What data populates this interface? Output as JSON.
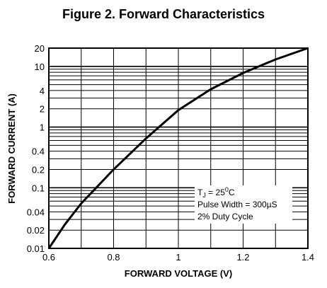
{
  "chart_data": {
    "type": "line",
    "title": "Figure 2. Forward Characteristics",
    "xlabel": "FORWARD VOLTAGE (V)",
    "ylabel": "FORWARD CURRENT (A)",
    "xlim": [
      0.6,
      1.4
    ],
    "ylim": [
      0.01,
      20
    ],
    "yscale": "log",
    "grid": true,
    "x_ticks": [
      0.6,
      0.7,
      0.8,
      0.9,
      1.0,
      1.1,
      1.2,
      1.3,
      1.4
    ],
    "x_tick_labels": [
      "0.6",
      "0.8",
      "1",
      "1.2",
      "1.4"
    ],
    "x_tick_label_values": [
      0.6,
      0.8,
      1.0,
      1.2,
      1.4
    ],
    "y_tick_labels": [
      "20",
      "10",
      "4",
      "2",
      "1",
      "0.4",
      "0.2",
      "0.1",
      "0.04",
      "0.02",
      "0.01"
    ],
    "y_tick_label_values": [
      20,
      10,
      4,
      2,
      1,
      0.4,
      0.2,
      0.1,
      0.04,
      0.02,
      0.01
    ],
    "series": [
      {
        "x": [
          0.6,
          0.65,
          0.7,
          0.8,
          0.9,
          1.0,
          1.1,
          1.2,
          1.3,
          1.4
        ],
        "y": [
          0.01,
          0.025,
          0.055,
          0.2,
          0.65,
          1.9,
          4.2,
          7.8,
          13,
          20
        ]
      }
    ],
    "annotation": {
      "tj_prefix": "T",
      "tj_sub": "J",
      "tj_mid": " = 25",
      "tj_sup": "0",
      "tj_unit": "C",
      "pulse": "Pulse Width = 300µS",
      "duty": "2% Duty Cycle"
    },
    "colors": {
      "line": "#000000",
      "grid": "#000000",
      "background": "#ffffff"
    }
  }
}
